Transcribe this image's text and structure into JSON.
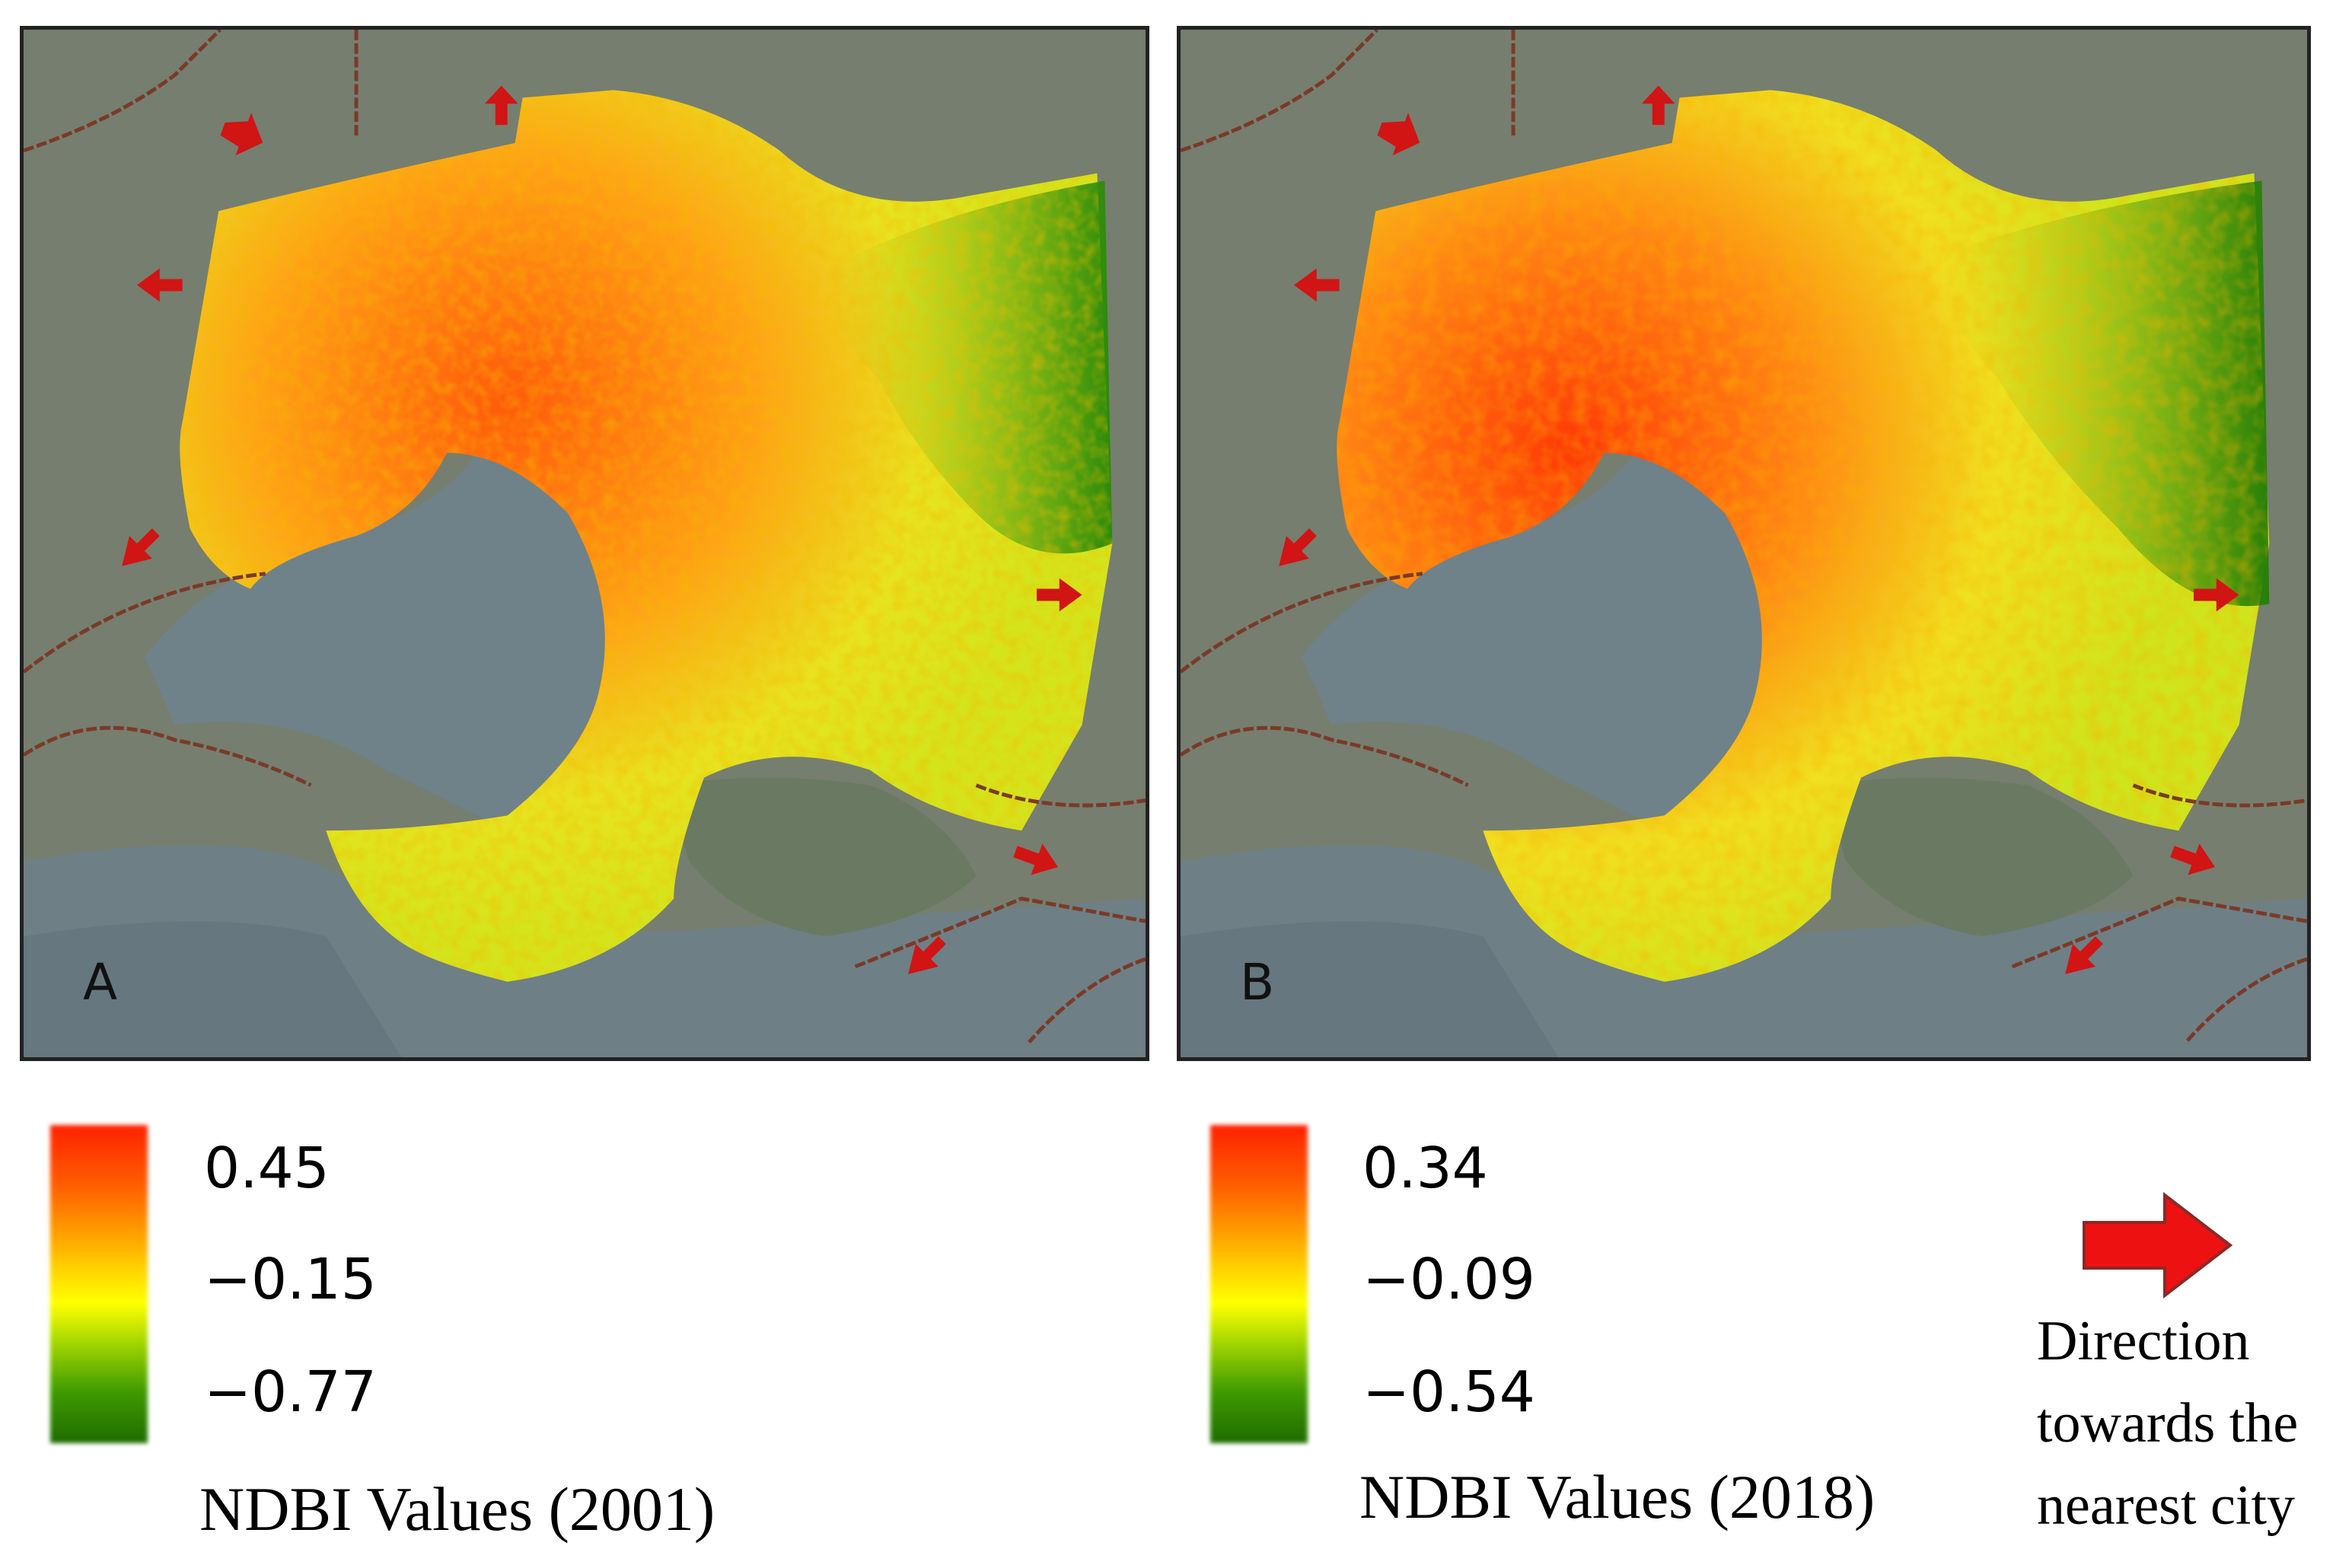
{
  "panels": [
    {
      "letter": "A",
      "legend": {
        "max": "0.45",
        "mid": "−0.15",
        "min": "−0.77",
        "title": "NDBI Values (2001)"
      }
    },
    {
      "letter": "B",
      "legend": {
        "max": "0.34",
        "mid": "−0.09",
        "min": "−0.54",
        "title": "NDBI Values (2018)"
      }
    }
  ],
  "legend_colors": {
    "high": "#ff2200",
    "middle": "#ffff00",
    "low": "#1f6c00"
  },
  "arrow_key": {
    "icon": "red-arrow-right-icon",
    "color": "#ee1111",
    "label": "Direction towards the nearest city"
  }
}
